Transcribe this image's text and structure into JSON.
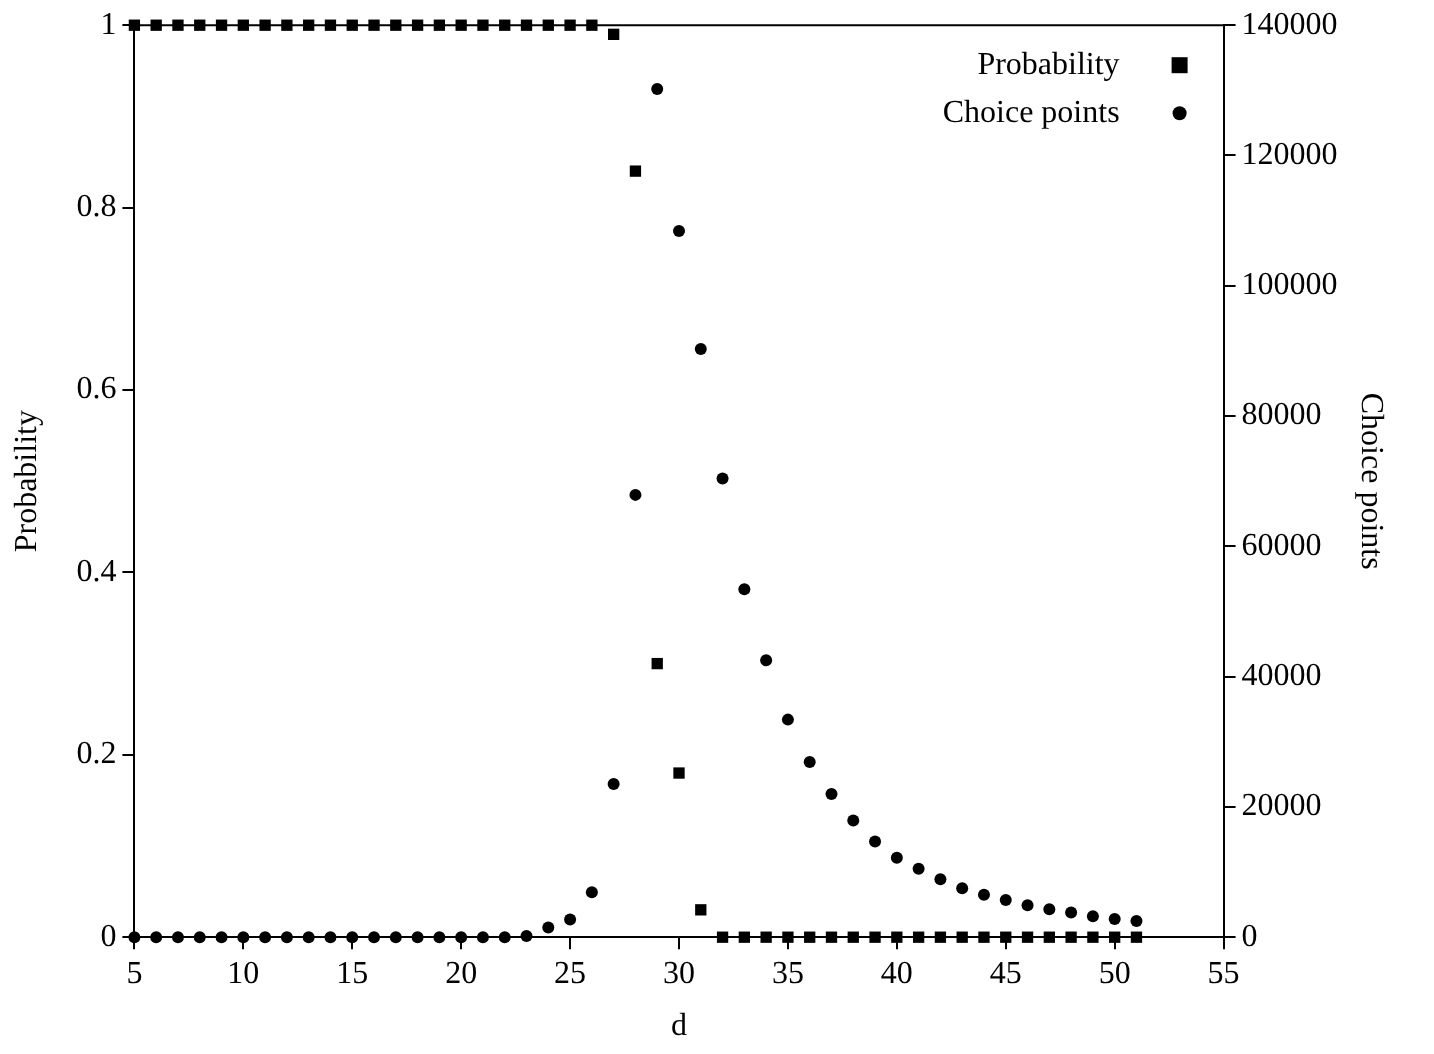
{
  "chart_data": {
    "type": "scatter",
    "xlabel": "d",
    "ylabel": "Probability",
    "y2label": "Choice points",
    "x": [
      5,
      6,
      7,
      8,
      9,
      10,
      11,
      12,
      13,
      14,
      15,
      16,
      17,
      18,
      19,
      20,
      21,
      22,
      23,
      24,
      25,
      26,
      27,
      28,
      29,
      30,
      31,
      32,
      33,
      34,
      35,
      36,
      37,
      38,
      39,
      40,
      41,
      42,
      43,
      44,
      45,
      46,
      47,
      48,
      49,
      50,
      51
    ],
    "series": [
      {
        "name": "Probability",
        "color": "#000000",
        "marker": "square",
        "values": [
          1,
          1,
          1,
          1,
          1,
          1,
          1,
          1,
          1,
          1,
          1,
          1,
          1,
          1,
          1,
          1,
          1,
          1,
          1,
          1,
          1,
          1,
          0.99,
          0.84,
          0.3,
          0.18,
          0.03,
          0,
          0,
          0,
          0,
          0,
          0,
          0,
          0,
          0,
          0,
          0,
          0,
          0,
          0,
          0,
          0,
          0,
          0,
          0,
          0
        ]
      },
      {
        "name": "Choice points",
        "color": "#000000",
        "marker": "circle",
        "axis": "y2",
        "values": [
          0,
          0,
          0,
          0,
          0,
          0,
          0,
          0,
          0,
          0,
          0,
          0,
          0,
          0,
          0,
          0,
          0,
          0,
          200,
          1500,
          2700,
          6900,
          23500,
          67900,
          130200,
          108400,
          90300,
          70400,
          53400,
          42500,
          33400,
          26900,
          22000,
          17900,
          14700,
          12200,
          10500,
          8900,
          7500,
          6500,
          5700,
          4900,
          4300,
          3800,
          3200,
          2800,
          2500
        ]
      }
    ],
    "xlim": [
      5,
      55
    ],
    "xticks": [
      5,
      10,
      15,
      20,
      25,
      30,
      35,
      40,
      45,
      50,
      55
    ],
    "ylim": [
      0,
      1
    ],
    "yticks": [
      0,
      0.2,
      0.4,
      0.6,
      0.8,
      1
    ],
    "y2lim": [
      0,
      140000
    ],
    "y2ticks": [
      0,
      20000,
      40000,
      60000,
      80000,
      100000,
      120000,
      140000
    ],
    "grid": false,
    "legend": "top right"
  }
}
